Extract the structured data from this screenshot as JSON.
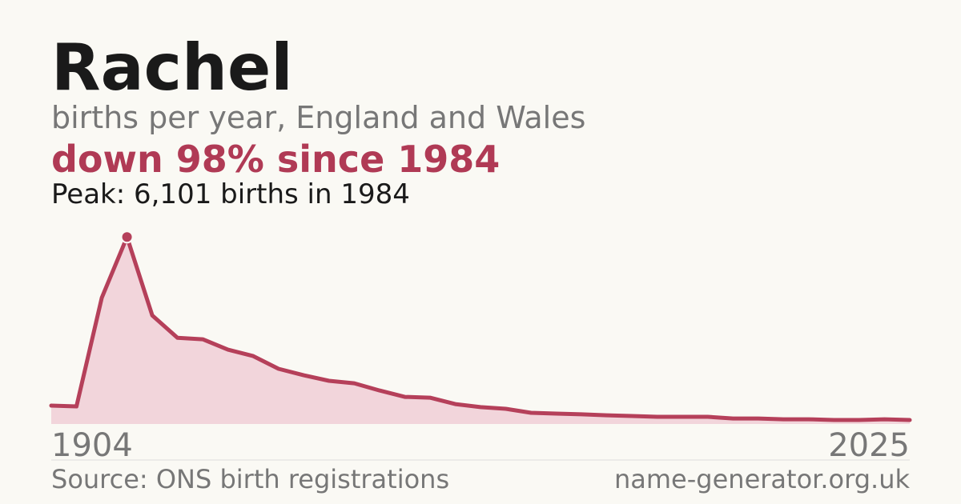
{
  "chart_data": {
    "type": "area",
    "title": "Rachel",
    "subtitle": "births per year, England and Wales",
    "headline": "down 98% since 1984",
    "peak_note": "Peak: 6,101 births in 1984",
    "categories": [
      "1904",
      null,
      null,
      null,
      null,
      null,
      null,
      null,
      null,
      null,
      null,
      null,
      null,
      null,
      null,
      null,
      null,
      null,
      null,
      null,
      null,
      null,
      null,
      null,
      null,
      null,
      null,
      null,
      null,
      null,
      null,
      null,
      null,
      null,
      "2025"
    ],
    "values": [
      600,
      575,
      4120,
      6101,
      3545,
      2815,
      2765,
      2425,
      2215,
      1800,
      1590,
      1410,
      1330,
      1095,
      885,
      860,
      650,
      550,
      495,
      365,
      340,
      315,
      285,
      260,
      235,
      235,
      235,
      180,
      180,
      155,
      155,
      130,
      130,
      155,
      130
    ],
    "peak_index": 3,
    "ylim": [
      0,
      6500
    ],
    "color": "#b5405a",
    "fill": "#f2d5db",
    "source": "Source: ONS birth registrations",
    "site": "name-generator.org.uk"
  }
}
